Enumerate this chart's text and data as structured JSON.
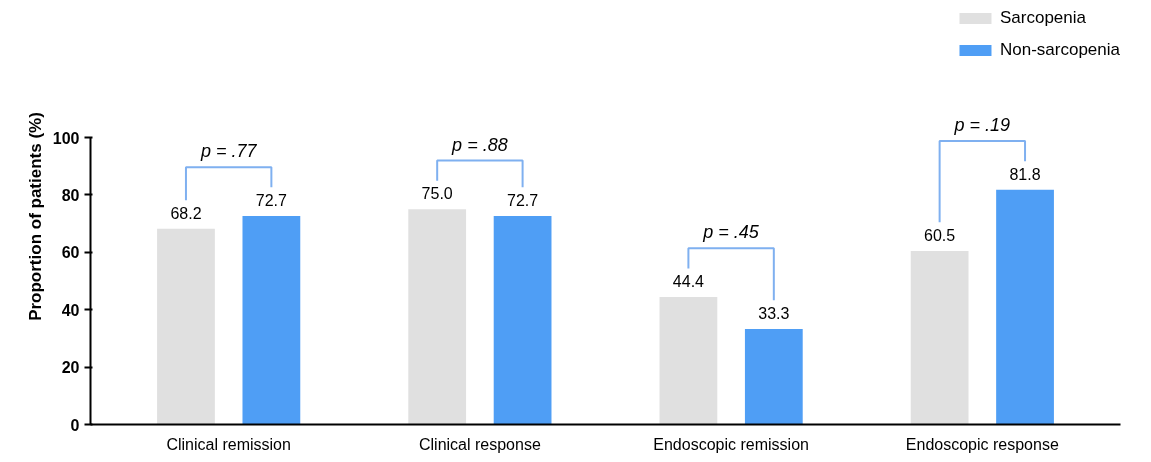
{
  "chart_data": {
    "type": "bar",
    "ylabel": "Proportion of patients (%)",
    "categories": [
      "Clinical remission",
      "Clinical response",
      "Endoscopic remission",
      "Endoscopic response"
    ],
    "series": [
      {
        "name": "Sarcopenia",
        "color": "#e0e0e0",
        "values": [
          68.2,
          75.0,
          44.4,
          60.5
        ],
        "value_labels": [
          "68.2",
          "75.0",
          "44.4",
          "60.5"
        ]
      },
      {
        "name": "Non-sarcopenia",
        "color": "#4f9ef5",
        "values": [
          72.7,
          72.7,
          33.3,
          81.8
        ],
        "value_labels": [
          "72.7",
          "72.7",
          "33.3",
          "81.8"
        ]
      }
    ],
    "ylim": [
      0,
      100
    ],
    "yticks": [
      0,
      20,
      40,
      60,
      80,
      100
    ],
    "grid": false,
    "legend": "top right",
    "annotations": [
      "p = .77",
      "p = .88",
      "p = .45",
      "p = .19"
    ]
  }
}
